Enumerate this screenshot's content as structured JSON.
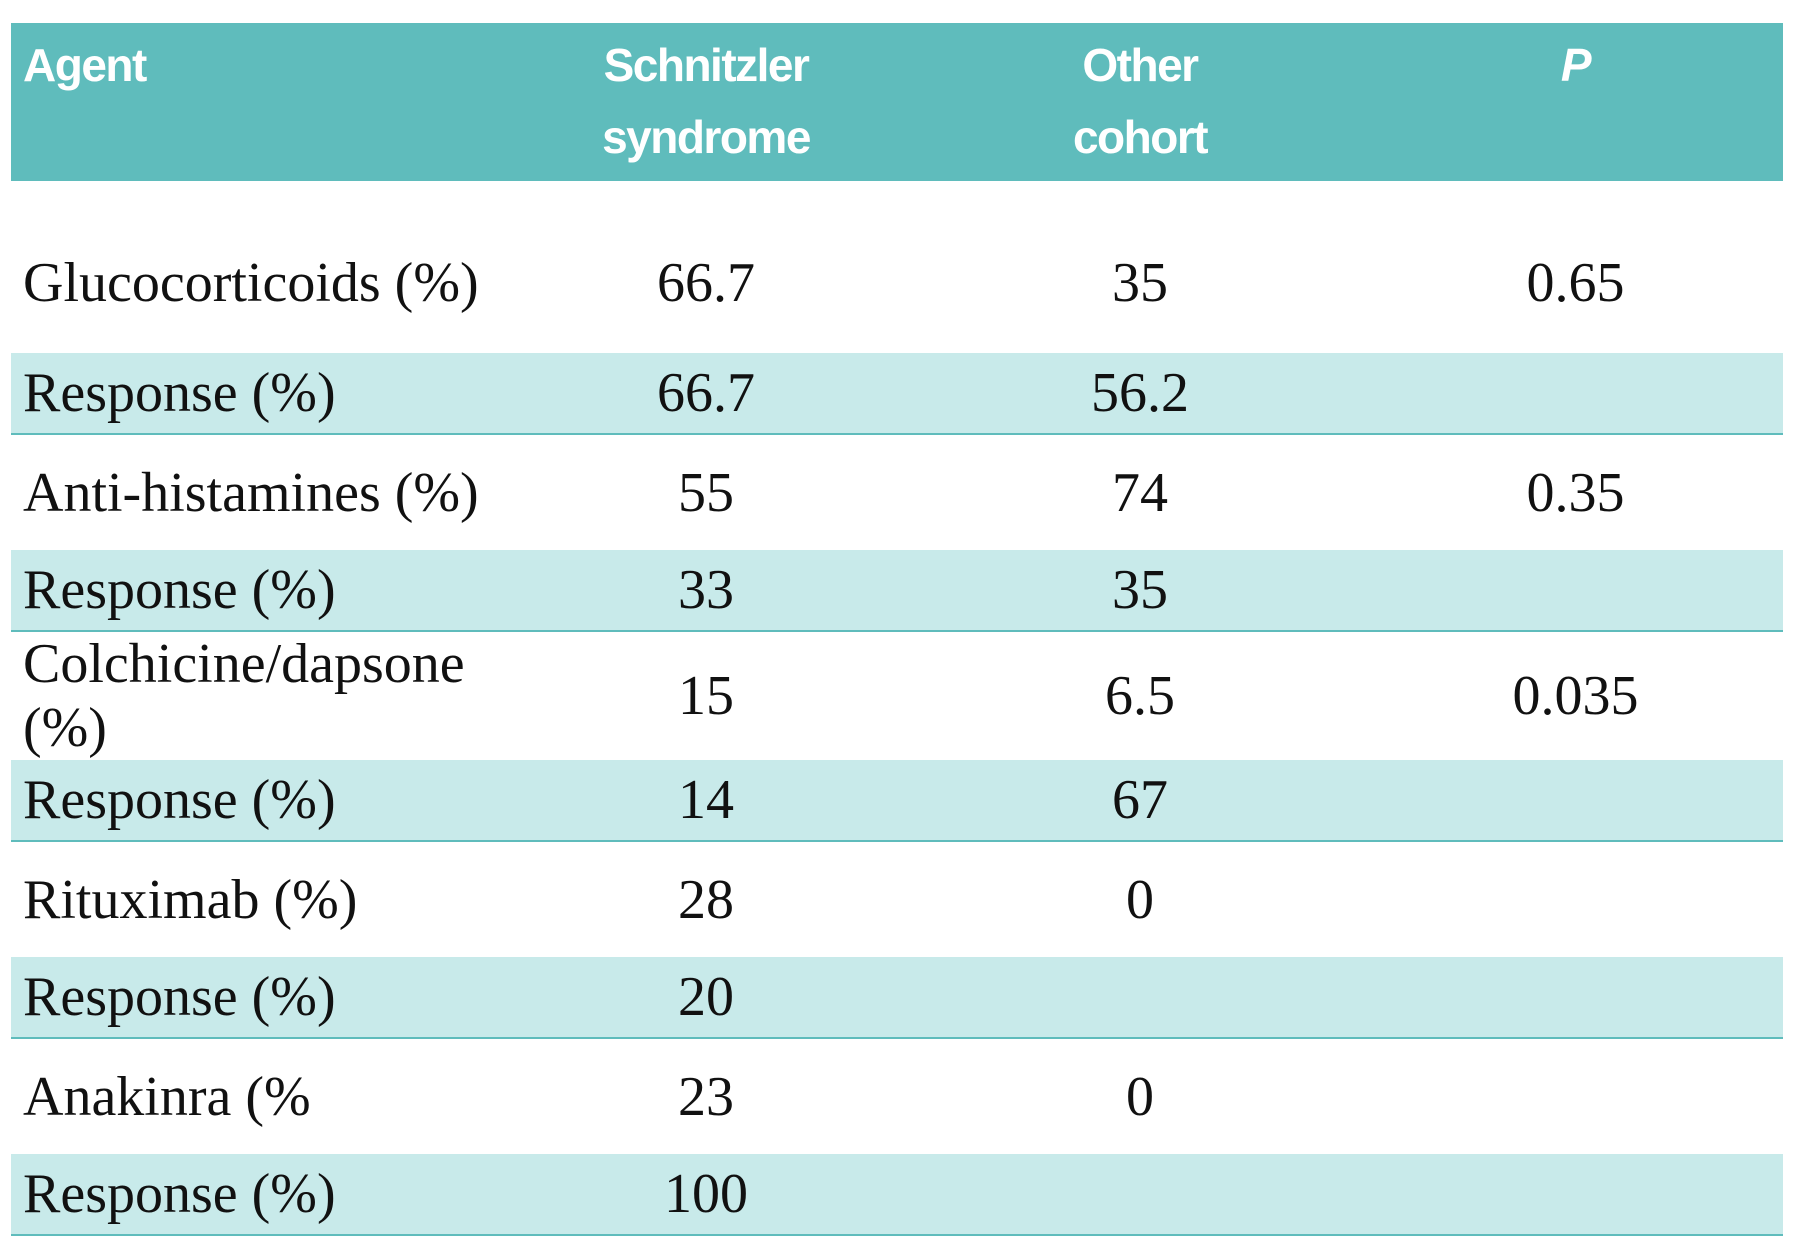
{
  "table": {
    "header": [
      [
        "Agent"
      ],
      [
        "Schnitzler",
        "syndrome"
      ],
      [
        "Other",
        "cohort"
      ],
      [
        "P"
      ]
    ],
    "rows": [
      [
        "Glucocorticoids (%)",
        "66.7",
        "35",
        "0.65"
      ],
      [
        "Response (%)",
        "66.7",
        "56.2",
        null
      ],
      [
        "Anti-histamines (%)",
        "55",
        "74",
        "0.35"
      ],
      [
        "Response (%)",
        "33",
        "35",
        null
      ],
      [
        "Colchicine/dapsone (%)",
        "15",
        "6.5",
        "0.035"
      ],
      [
        "Response (%)",
        "14",
        "67",
        null
      ],
      [
        "Rituximab (%)",
        "28",
        "0",
        null
      ],
      [
        "Response (%)",
        "20",
        null,
        null
      ],
      [
        "Anakinra (%",
        "23",
        "0",
        null
      ],
      [
        "Response (%)",
        "100",
        null,
        null
      ]
    ]
  }
}
